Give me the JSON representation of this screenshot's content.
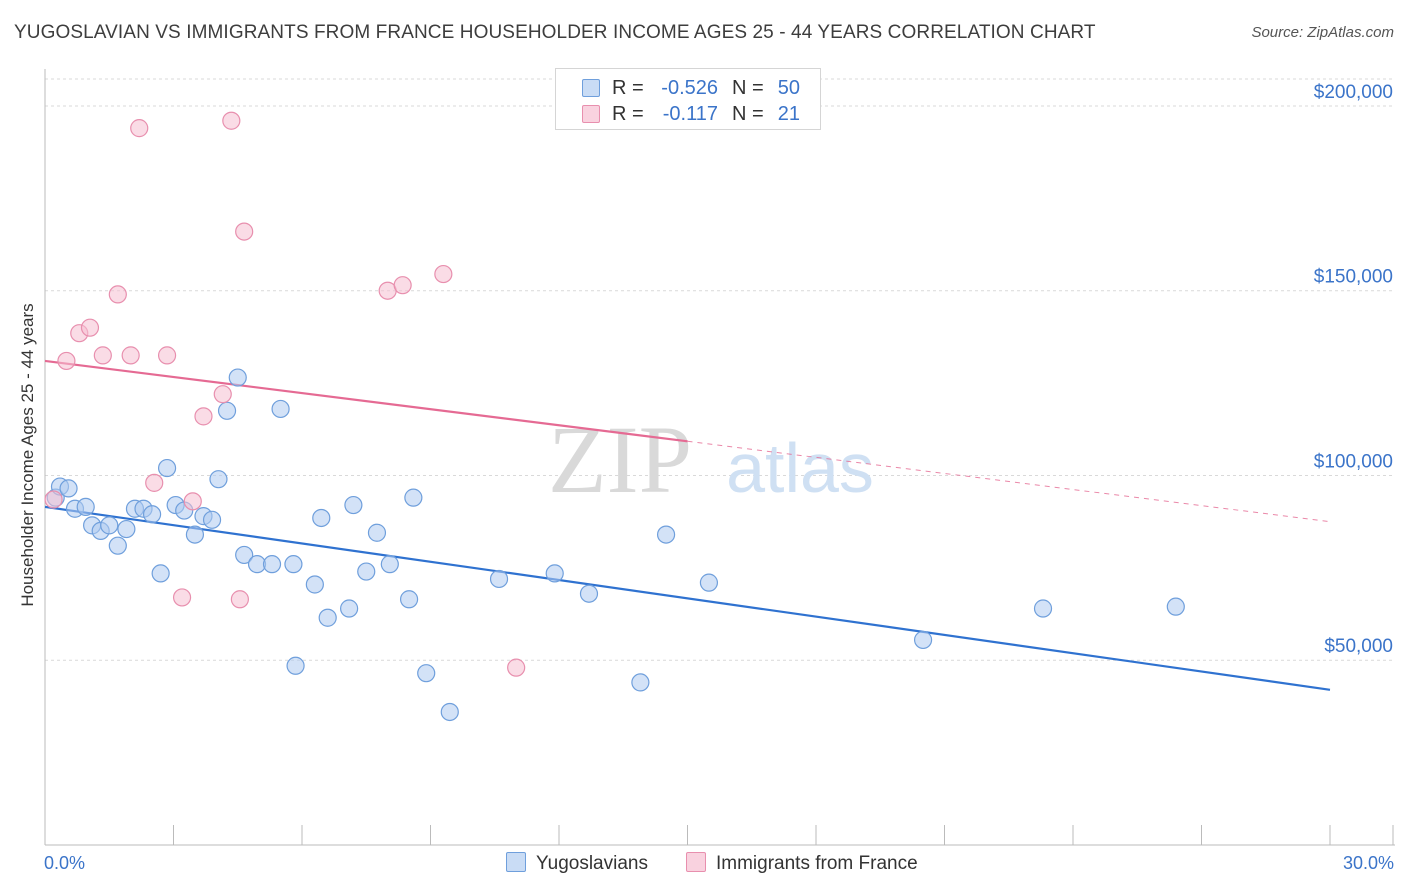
{
  "header": {
    "title": "YUGOSLAVIAN VS IMMIGRANTS FROM FRANCE HOUSEHOLDER INCOME AGES 25 - 44 YEARS CORRELATION CHART",
    "source": "Source: ZipAtlas.com"
  },
  "watermark": {
    "part1": "ZIP",
    "part2": "atlas"
  },
  "legend": {
    "r_label": "R =",
    "n_label": "N =",
    "rows": [
      {
        "r_value": "-0.526",
        "n_value": "50"
      },
      {
        "r_value": "-0.117",
        "n_value": "21"
      }
    ]
  },
  "bottom_legend": {
    "yugoslavians": "Yugoslavians",
    "france": "Immigrants from France"
  },
  "colors": {
    "blue_fill": "#aecbf0",
    "blue_stroke": "#6f9fdc",
    "blue_line": "#2f72d0",
    "pink_fill": "#f6bfd1",
    "pink_stroke": "#e88fae",
    "pink_line": "#e56a93",
    "axis_label": "#3b74c9",
    "grid": "#d9d9d9"
  },
  "chart_data": {
    "type": "scatter",
    "title": "YUGOSLAVIAN VS IMMIGRANTS FROM FRANCE HOUSEHOLDER INCOME AGES 25 - 44 YEARS CORRELATION CHART",
    "xlabel": "",
    "ylabel": "Householder Income Ages 25 - 44 years",
    "xlim": [
      0,
      30
    ],
    "ylim": [
      0,
      210000
    ],
    "x_tick_labels": [
      "0.0%",
      "30.0%"
    ],
    "y_ticks": [
      {
        "value": 50000,
        "label": "$50,000"
      },
      {
        "value": 100000,
        "label": "$100,000"
      },
      {
        "value": 150000,
        "label": "$150,000"
      },
      {
        "value": 200000,
        "label": "$200,000"
      }
    ],
    "grid": true,
    "legend": "top-center",
    "series": [
      {
        "name": "Yugoslavians",
        "r": -0.526,
        "n": 50,
        "trend": {
          "x0": 0,
          "y0": 91500,
          "x1": 30,
          "y1": 42000,
          "dashed_from": null
        },
        "points": [
          {
            "x": 0.25,
            "y": 94000
          },
          {
            "x": 0.35,
            "y": 97000
          },
          {
            "x": 0.55,
            "y": 96500
          },
          {
            "x": 0.7,
            "y": 91000
          },
          {
            "x": 0.95,
            "y": 91500
          },
          {
            "x": 1.1,
            "y": 86500
          },
          {
            "x": 1.3,
            "y": 85000
          },
          {
            "x": 1.5,
            "y": 86500
          },
          {
            "x": 1.7,
            "y": 81000
          },
          {
            "x": 1.9,
            "y": 85500
          },
          {
            "x": 2.1,
            "y": 91000
          },
          {
            "x": 2.3,
            "y": 91000
          },
          {
            "x": 2.5,
            "y": 89500
          },
          {
            "x": 2.7,
            "y": 73500
          },
          {
            "x": 2.85,
            "y": 102000
          },
          {
            "x": 3.05,
            "y": 92000
          },
          {
            "x": 3.25,
            "y": 90500
          },
          {
            "x": 3.5,
            "y": 84000
          },
          {
            "x": 3.7,
            "y": 89000
          },
          {
            "x": 3.9,
            "y": 88000
          },
          {
            "x": 4.05,
            "y": 99000
          },
          {
            "x": 4.25,
            "y": 117500
          },
          {
            "x": 4.5,
            "y": 126500
          },
          {
            "x": 4.65,
            "y": 78500
          },
          {
            "x": 4.95,
            "y": 76000
          },
          {
            "x": 5.3,
            "y": 76000
          },
          {
            "x": 5.5,
            "y": 118000
          },
          {
            "x": 5.85,
            "y": 48500
          },
          {
            "x": 5.8,
            "y": 76000
          },
          {
            "x": 6.3,
            "y": 70500
          },
          {
            "x": 6.45,
            "y": 88500
          },
          {
            "x": 6.6,
            "y": 61500
          },
          {
            "x": 7.1,
            "y": 64000
          },
          {
            "x": 7.2,
            "y": 92000
          },
          {
            "x": 7.5,
            "y": 74000
          },
          {
            "x": 7.75,
            "y": 84500
          },
          {
            "x": 8.05,
            "y": 76000
          },
          {
            "x": 8.5,
            "y": 66500
          },
          {
            "x": 8.6,
            "y": 94000
          },
          {
            "x": 8.9,
            "y": 46500
          },
          {
            "x": 9.45,
            "y": 36000
          },
          {
            "x": 10.6,
            "y": 72000
          },
          {
            "x": 11.9,
            "y": 73500
          },
          {
            "x": 12.7,
            "y": 68000
          },
          {
            "x": 13.9,
            "y": 44000
          },
          {
            "x": 14.5,
            "y": 84000
          },
          {
            "x": 15.5,
            "y": 71000
          },
          {
            "x": 20.5,
            "y": 55500
          },
          {
            "x": 23.3,
            "y": 64000
          },
          {
            "x": 26.4,
            "y": 64500
          }
        ]
      },
      {
        "name": "Immigrants from France",
        "r": -0.117,
        "n": 21,
        "trend": {
          "x0": 0,
          "y0": 131000,
          "x1": 30,
          "y1": 87500,
          "dashed_from": 15
        },
        "points": [
          {
            "x": 0.2,
            "y": 93500
          },
          {
            "x": 0.5,
            "y": 131000
          },
          {
            "x": 0.8,
            "y": 138500
          },
          {
            "x": 1.05,
            "y": 140000
          },
          {
            "x": 1.35,
            "y": 132500
          },
          {
            "x": 1.7,
            "y": 149000
          },
          {
            "x": 2.0,
            "y": 132500
          },
          {
            "x": 2.2,
            "y": 194000
          },
          {
            "x": 2.55,
            "y": 98000
          },
          {
            "x": 2.85,
            "y": 132500
          },
          {
            "x": 3.2,
            "y": 67000
          },
          {
            "x": 3.45,
            "y": 93000
          },
          {
            "x": 3.7,
            "y": 116000
          },
          {
            "x": 4.15,
            "y": 122000
          },
          {
            "x": 4.35,
            "y": 196000
          },
          {
            "x": 4.55,
            "y": 66500
          },
          {
            "x": 4.65,
            "y": 166000
          },
          {
            "x": 8.0,
            "y": 150000
          },
          {
            "x": 8.35,
            "y": 151500
          },
          {
            "x": 9.3,
            "y": 154500
          },
          {
            "x": 11.0,
            "y": 48000
          }
        ]
      }
    ]
  }
}
